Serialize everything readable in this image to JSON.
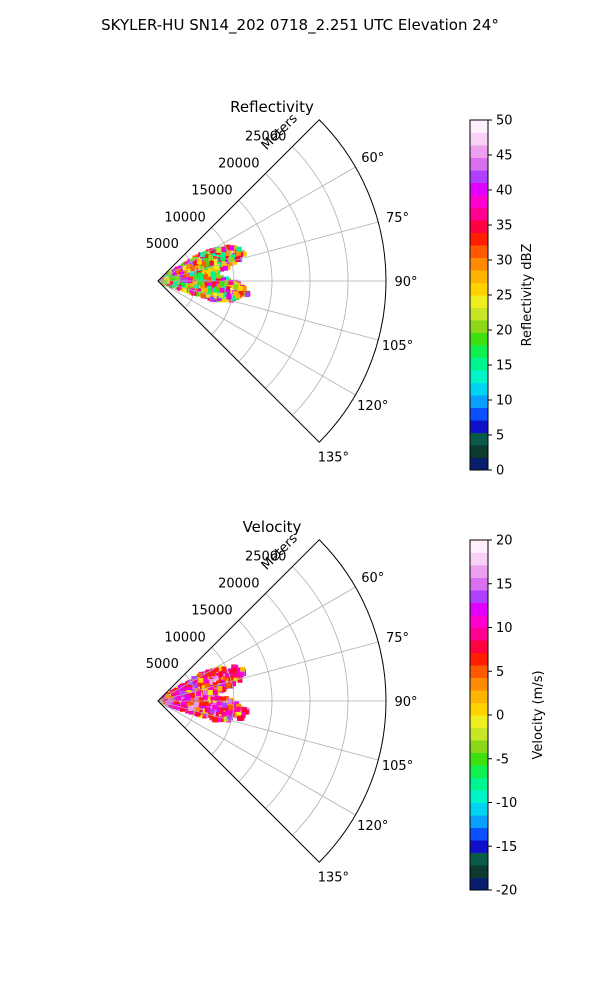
{
  "figure": {
    "title": "SKYLER-HU  SN14_202  0718_2.251 UTC Elevation 24°"
  },
  "chart_data": [
    {
      "type": "heatmap",
      "projection": "polar-sector",
      "title": "Reflectivity",
      "radial_label": "Meters",
      "radial_ticks": [
        5000,
        10000,
        15000,
        20000,
        25000
      ],
      "radial_max": 30000,
      "angle_ticks": [
        "60°",
        "75°",
        "90°",
        "105°",
        "120°",
        "135°"
      ],
      "angle_range_deg": [
        45,
        135
      ],
      "grid": true,
      "colorbar": {
        "label": "Reflectivity dBZ",
        "min": 0,
        "max": 50,
        "ticks": [
          0,
          5,
          10,
          15,
          20,
          25,
          30,
          35,
          40,
          45,
          50
        ],
        "colors": [
          "#0a1e6e",
          "#0b3a2e",
          "#0a5a4a",
          "#1010c8",
          "#0a50ff",
          "#0aa0ff",
          "#00d4f0",
          "#00f5c8",
          "#00f590",
          "#10f050",
          "#40e010",
          "#8ad818",
          "#c8e628",
          "#f0f020",
          "#ffd200",
          "#ffb400",
          "#ff8c00",
          "#ff5a00",
          "#ff1e00",
          "#ff0040",
          "#ff0090",
          "#ff00d0",
          "#e000ff",
          "#b040ff",
          "#d870f0",
          "#eea0f0",
          "#f8d0f8",
          "#fff0fc"
        ]
      },
      "echo_region": {
        "angle_range_deg": [
          58,
          109
        ],
        "range_max": 12000,
        "dominant_values": [
          15,
          20,
          25,
          30,
          35,
          40
        ]
      }
    },
    {
      "type": "heatmap",
      "projection": "polar-sector",
      "title": "Velocity",
      "radial_label": "Meters",
      "radial_ticks": [
        5000,
        10000,
        15000,
        20000,
        25000
      ],
      "radial_max": 30000,
      "angle_ticks": [
        "60°",
        "75°",
        "90°",
        "105°",
        "120°",
        "135°"
      ],
      "angle_range_deg": [
        45,
        135
      ],
      "grid": true,
      "colorbar": {
        "label": "Velocity (m/s)",
        "min": -20,
        "max": 20,
        "ticks": [
          -20,
          -15,
          -10,
          -5,
          0,
          5,
          10,
          15,
          20
        ],
        "colors": [
          "#0a1e6e",
          "#0b3a2e",
          "#0a5a4a",
          "#1010c8",
          "#0a50ff",
          "#0aa0ff",
          "#00d4f0",
          "#00f5c8",
          "#00f590",
          "#10f050",
          "#40e010",
          "#8ad818",
          "#c8e628",
          "#f0f020",
          "#ffd200",
          "#ffb400",
          "#ff8c00",
          "#ff5a00",
          "#ff1e00",
          "#ff0040",
          "#ff0090",
          "#ff00d0",
          "#e000ff",
          "#b040ff",
          "#d870f0",
          "#eea0f0",
          "#f8d0f8",
          "#fff0fc"
        ]
      },
      "echo_region": {
        "angle_range_deg": [
          58,
          109
        ],
        "range_max": 12000,
        "dominant_values": [
          0,
          5,
          8,
          10,
          12,
          15
        ]
      }
    }
  ]
}
